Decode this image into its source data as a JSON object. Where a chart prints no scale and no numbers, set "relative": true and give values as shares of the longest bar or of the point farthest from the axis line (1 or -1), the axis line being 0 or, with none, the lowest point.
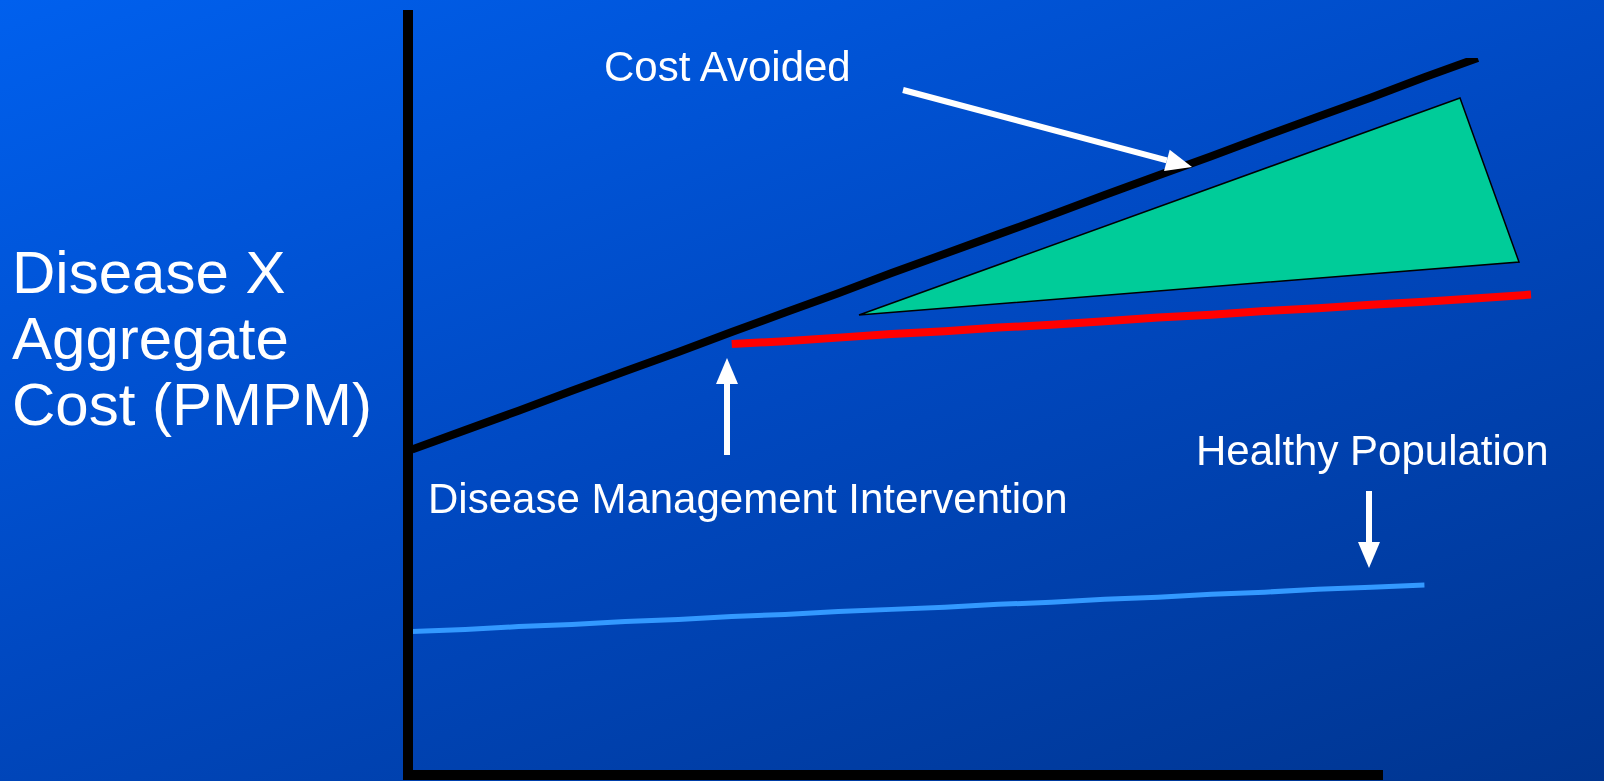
{
  "chart_data": {
    "type": "line",
    "relative": true,
    "ylabel": "Disease X Aggregate Cost (PMPM)",
    "annotations": [
      "Cost Avoided",
      "Disease Management Intervention",
      "Healthy Population"
    ],
    "categories": [
      null,
      null,
      null,
      null,
      null,
      null,
      null,
      null,
      null,
      null,
      null,
      null,
      null,
      null,
      null,
      null,
      null,
      null,
      null,
      null,
      null,
      null
    ],
    "series": [
      {
        "color": "#000000",
        "values": [
          0.454,
          0.481,
          0.508,
          0.536,
          0.563,
          0.59,
          0.618,
          0.645,
          0.672,
          0.7,
          0.727,
          0.754,
          0.781,
          0.809,
          0.836,
          0.863,
          0.891,
          0.918,
          0.945,
          0.973,
          1.0,
          null
        ]
      },
      {
        "color": "#ff0000",
        "values": [
          null,
          null,
          null,
          null,
          null,
          null,
          0.601,
          0.605,
          0.61,
          0.615,
          0.619,
          0.624,
          0.628,
          0.633,
          0.638,
          0.642,
          0.647,
          0.651,
          0.656,
          0.66,
          0.665,
          0.67
        ]
      },
      {
        "color": "#3399ff",
        "values": [
          0.2,
          0.203,
          0.207,
          0.21,
          0.214,
          0.217,
          0.221,
          0.224,
          0.228,
          0.231,
          0.234,
          0.238,
          0.241,
          0.245,
          0.248,
          0.252,
          0.255,
          0.259,
          0.262,
          0.265,
          null,
          null
        ]
      }
    ]
  }
}
